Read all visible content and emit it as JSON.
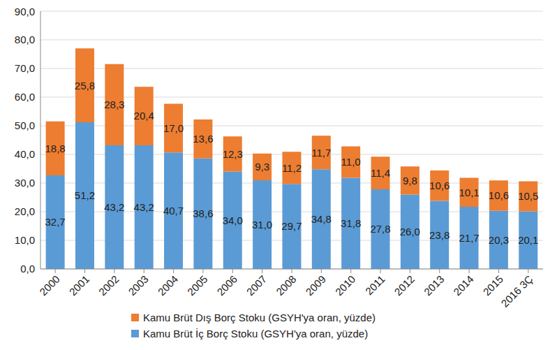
{
  "chart_data": {
    "type": "bar",
    "stacked": true,
    "data_labels": true,
    "grid": true,
    "legend": "bottom",
    "categories": [
      "2000",
      "2001",
      "2002",
      "2003",
      "2004",
      "2005",
      "2006",
      "2007",
      "2008",
      "2009",
      "2010",
      "2011",
      "2012",
      "2013",
      "2014",
      "2015",
      "2016 3Ç"
    ],
    "ylim": [
      0,
      90
    ],
    "yticks": [
      {
        "value": 0,
        "label": "0,0"
      },
      {
        "value": 10,
        "label": "10,0"
      },
      {
        "value": 20,
        "label": "20,0"
      },
      {
        "value": 30,
        "label": "30,0"
      },
      {
        "value": 40,
        "label": "40,0"
      },
      {
        "value": 50,
        "label": "50,0"
      },
      {
        "value": 60,
        "label": "60,0"
      },
      {
        "value": 70,
        "label": "70,0"
      },
      {
        "value": 80,
        "label": "80,0"
      },
      {
        "value": 90,
        "label": "90,0"
      }
    ],
    "series": [
      {
        "name": "Kamu Brüt İç Borç Stoku (GSYH'ya oran, yüzde)",
        "color": "#5b9bd5",
        "values": [
          32.7,
          51.2,
          43.2,
          43.2,
          40.7,
          38.6,
          34.0,
          31.0,
          29.7,
          34.8,
          31.8,
          27.8,
          26.0,
          23.8,
          21.7,
          20.3,
          20.1
        ],
        "value_labels": [
          "32,7",
          "51,2",
          "43,2",
          "43,2",
          "40,7",
          "38,6",
          "34,0",
          "31,0",
          "29,7",
          "34,8",
          "31,8",
          "27,8",
          "26,0",
          "23,8",
          "21,7",
          "20,3",
          "20,1"
        ]
      },
      {
        "name": "Kamu Brüt Dış Borç Stoku (GSYH'ya oran, yüzde)",
        "color": "#ed7d31",
        "values": [
          18.8,
          25.8,
          28.3,
          20.4,
          17.0,
          13.6,
          12.3,
          9.3,
          11.2,
          11.7,
          11.0,
          11.4,
          9.8,
          10.6,
          10.1,
          10.6,
          10.5
        ],
        "value_labels": [
          "18,8",
          "25,8",
          "28,3",
          "20,4",
          "17,0",
          "13,6",
          "12,3",
          "9,3",
          "11,2",
          "11,7",
          "11,0",
          "11,4",
          "9,8",
          "10,6",
          "10,1",
          "10,6",
          "10,5"
        ]
      }
    ]
  }
}
